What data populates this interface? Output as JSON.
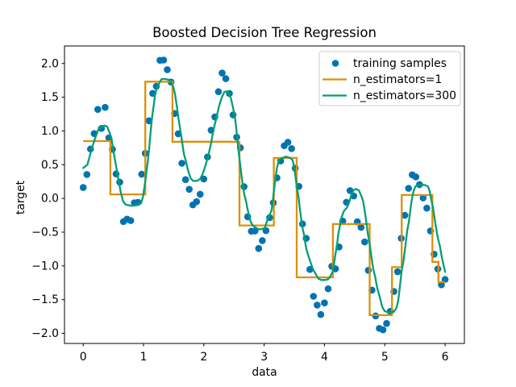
{
  "figure": {
    "background": "#ffffff",
    "spine_color": "#000000",
    "text_color": "#000000"
  },
  "chart_data": {
    "type": "scatter",
    "title": "Boosted Decision Tree Regression",
    "xlabel": "data",
    "ylabel": "target",
    "xlim": [
      -0.31,
      6.32
    ],
    "ylim": [
      -2.15,
      2.26
    ],
    "xticks": [
      0,
      1,
      2,
      3,
      4,
      5,
      6
    ],
    "yticks": [
      -2.0,
      -1.5,
      -1.0,
      -0.5,
      0.0,
      0.5,
      1.0,
      1.5,
      2.0
    ],
    "grid": false,
    "legend": {
      "position": "upper right",
      "entries": [
        {
          "label": "training samples",
          "marker": "dot"
        },
        {
          "label": "n_estimators=1",
          "marker": "line"
        },
        {
          "label": "n_estimators=300",
          "marker": "line"
        }
      ]
    },
    "series": [
      {
        "name": "training samples",
        "type": "scatter",
        "color": "#0173b2",
        "marker_radius": 4.3,
        "points": [
          [
            0,
            0.162
          ],
          [
            0.061,
            0.355
          ],
          [
            0.121,
            0.733
          ],
          [
            0.182,
            0.961
          ],
          [
            0.242,
            1.32
          ],
          [
            0.303,
            1.038
          ],
          [
            0.364,
            1.349
          ],
          [
            0.424,
            0.897
          ],
          [
            0.485,
            0.728
          ],
          [
            0.545,
            0.363
          ],
          [
            0.606,
            0.241
          ],
          [
            0.667,
            -0.344
          ],
          [
            0.727,
            -0.307
          ],
          [
            0.788,
            -0.329
          ],
          [
            0.848,
            -0.065
          ],
          [
            0.909,
            -0.058
          ],
          [
            0.97,
            0.359
          ],
          [
            1.03,
            0.668
          ],
          [
            1.091,
            1.151
          ],
          [
            1.152,
            1.557
          ],
          [
            1.212,
            1.662
          ],
          [
            1.273,
            2.047
          ],
          [
            1.333,
            2.051
          ],
          [
            1.394,
            1.908
          ],
          [
            1.455,
            1.726
          ],
          [
            1.515,
            1.258
          ],
          [
            1.576,
            0.958
          ],
          [
            1.636,
            0.521
          ],
          [
            1.697,
            0.278
          ],
          [
            1.758,
            0.135
          ],
          [
            1.818,
            -0.096
          ],
          [
            1.879,
            -0.049
          ],
          [
            1.939,
            0.062
          ],
          [
            2,
            0.288
          ],
          [
            2.061,
            0.614
          ],
          [
            2.121,
            1.011
          ],
          [
            2.182,
            1.208
          ],
          [
            2.242,
            1.582
          ],
          [
            2.303,
            1.859
          ],
          [
            2.364,
            1.775
          ],
          [
            2.424,
            1.556
          ],
          [
            2.485,
            1.238
          ],
          [
            2.545,
            0.908
          ],
          [
            2.606,
            0.751
          ],
          [
            2.667,
            0.174
          ],
          [
            2.727,
            -0.271
          ],
          [
            2.788,
            -0.486
          ],
          [
            2.848,
            -0.483
          ],
          [
            2.909,
            -0.742
          ],
          [
            2.97,
            -0.625
          ],
          [
            3.03,
            -0.478
          ],
          [
            3.091,
            -0.284
          ],
          [
            3.152,
            -0.065
          ],
          [
            3.212,
            0.305
          ],
          [
            3.273,
            0.556
          ],
          [
            3.333,
            0.781
          ],
          [
            3.394,
            0.832
          ],
          [
            3.455,
            0.738
          ],
          [
            3.515,
            0.447
          ],
          [
            3.576,
            0.179
          ],
          [
            3.636,
            -0.378
          ],
          [
            3.697,
            -0.592
          ],
          [
            3.758,
            -1.053
          ],
          [
            3.818,
            -1.451
          ],
          [
            3.879,
            -1.582
          ],
          [
            3.939,
            -1.721
          ],
          [
            4,
            -1.549
          ],
          [
            4.061,
            -1.339
          ],
          [
            4.121,
            -1.006
          ],
          [
            4.182,
            -1.044
          ],
          [
            4.242,
            -0.72
          ],
          [
            4.303,
            -0.335
          ],
          [
            4.364,
            -0.057
          ],
          [
            4.424,
            0.116
          ],
          [
            4.485,
            0.036
          ],
          [
            4.545,
            -0.346
          ],
          [
            4.606,
            -0.429
          ],
          [
            4.667,
            -0.645
          ],
          [
            4.727,
            -1.066
          ],
          [
            4.788,
            -1.359
          ],
          [
            4.848,
            -1.742
          ],
          [
            4.909,
            -1.926
          ],
          [
            4.97,
            -1.948
          ],
          [
            5.03,
            -1.853
          ],
          [
            5.091,
            -1.674
          ],
          [
            5.152,
            -1.379
          ],
          [
            5.212,
            -1.087
          ],
          [
            5.273,
            -0.591
          ],
          [
            5.333,
            -0.25
          ],
          [
            5.394,
            0.149
          ],
          [
            5.455,
            0.35
          ],
          [
            5.515,
            0.319
          ],
          [
            5.576,
            0.205
          ],
          [
            5.636,
            0.007
          ],
          [
            5.697,
            -0.144
          ],
          [
            5.758,
            -0.482
          ],
          [
            5.818,
            -0.827
          ],
          [
            5.879,
            -1.045
          ],
          [
            5.939,
            -1.28
          ],
          [
            6,
            -1.201
          ]
        ]
      },
      {
        "name": "n_estimators=1",
        "type": "step",
        "color": "#de8f05",
        "linewidth": 2.3,
        "segments": [
          [
            0.0,
            0.45,
            0.85
          ],
          [
            0.45,
            1.03,
            0.06
          ],
          [
            1.03,
            1.48,
            1.73
          ],
          [
            1.48,
            2.59,
            0.84
          ],
          [
            2.59,
            3.16,
            -0.4
          ],
          [
            3.16,
            3.54,
            0.6
          ],
          [
            3.54,
            4.14,
            -1.17
          ],
          [
            4.14,
            4.75,
            -0.38
          ],
          [
            4.75,
            5.12,
            -1.73
          ],
          [
            5.12,
            5.28,
            -1.02
          ],
          [
            5.28,
            5.79,
            0.05
          ],
          [
            5.79,
            5.89,
            -0.94
          ],
          [
            5.89,
            6.0,
            -1.24
          ]
        ]
      },
      {
        "name": "n_estimators=300",
        "type": "line",
        "color": "#029e73",
        "linewidth": 2.3,
        "points": [
          [
            0,
            0.45
          ],
          [
            0.07,
            0.5
          ],
          [
            0.13,
            0.7
          ],
          [
            0.2,
            0.9
          ],
          [
            0.25,
            1.02
          ],
          [
            0.3,
            1.06
          ],
          [
            0.36,
            1.08
          ],
          [
            0.4,
            1.06
          ],
          [
            0.44,
            0.97
          ],
          [
            0.47,
            0.88
          ],
          [
            0.51,
            0.66
          ],
          [
            0.55,
            0.46
          ],
          [
            0.58,
            0.3
          ],
          [
            0.62,
            0.1
          ],
          [
            0.66,
            -0.04
          ],
          [
            0.7,
            -0.09
          ],
          [
            0.8,
            -0.11
          ],
          [
            0.9,
            -0.1
          ],
          [
            0.96,
            -0.07
          ],
          [
            0.99,
            0.02
          ],
          [
            1.01,
            0.14
          ],
          [
            1.03,
            0.26
          ],
          [
            1.05,
            0.4
          ],
          [
            1.07,
            0.54
          ],
          [
            1.09,
            0.7
          ],
          [
            1.11,
            0.9
          ],
          [
            1.13,
            1.1
          ],
          [
            1.15,
            1.26
          ],
          [
            1.17,
            1.38
          ],
          [
            1.19,
            1.52
          ],
          [
            1.22,
            1.64
          ],
          [
            1.26,
            1.71
          ],
          [
            1.3,
            1.77
          ],
          [
            1.36,
            1.77
          ],
          [
            1.41,
            1.76
          ],
          [
            1.45,
            1.74
          ],
          [
            1.49,
            1.66
          ],
          [
            1.52,
            1.56
          ],
          [
            1.54,
            1.44
          ],
          [
            1.56,
            1.32
          ],
          [
            1.58,
            1.18
          ],
          [
            1.61,
            1.02
          ],
          [
            1.63,
            0.9
          ],
          [
            1.65,
            0.78
          ],
          [
            1.67,
            0.66
          ],
          [
            1.7,
            0.56
          ],
          [
            1.72,
            0.48
          ],
          [
            1.75,
            0.38
          ],
          [
            1.78,
            0.3
          ],
          [
            1.82,
            0.26
          ],
          [
            1.89,
            0.26
          ],
          [
            1.94,
            0.29
          ],
          [
            1.98,
            0.36
          ],
          [
            2.01,
            0.44
          ],
          [
            2.07,
            0.62
          ],
          [
            2.12,
            0.82
          ],
          [
            2.16,
            1.02
          ],
          [
            2.21,
            1.2
          ],
          [
            2.25,
            1.36
          ],
          [
            2.29,
            1.48
          ],
          [
            2.34,
            1.58
          ],
          [
            2.4,
            1.59
          ],
          [
            2.45,
            1.48
          ],
          [
            2.49,
            1.32
          ],
          [
            2.52,
            1.18
          ],
          [
            2.54,
            1.02
          ],
          [
            2.56,
            0.84
          ],
          [
            2.58,
            0.66
          ],
          [
            2.61,
            0.46
          ],
          [
            2.63,
            0.3
          ],
          [
            2.65,
            0.18
          ],
          [
            2.67,
            0.06
          ],
          [
            2.7,
            -0.04
          ],
          [
            2.72,
            -0.14
          ],
          [
            2.74,
            -0.22
          ],
          [
            2.77,
            -0.33
          ],
          [
            2.81,
            -0.4
          ],
          [
            2.87,
            -0.44
          ],
          [
            2.92,
            -0.46
          ],
          [
            2.97,
            -0.45
          ],
          [
            3.01,
            -0.44
          ],
          [
            3.05,
            -0.33
          ],
          [
            3.09,
            -0.25
          ],
          [
            3.12,
            -0.18
          ],
          [
            3.14,
            -0.08
          ],
          [
            3.16,
            0.1
          ],
          [
            3.19,
            0.3
          ],
          [
            3.21,
            0.44
          ],
          [
            3.24,
            0.56
          ],
          [
            3.28,
            0.59
          ],
          [
            3.36,
            0.62
          ],
          [
            3.43,
            0.6
          ],
          [
            3.47,
            0.57
          ],
          [
            3.5,
            0.46
          ],
          [
            3.52,
            0.32
          ],
          [
            3.54,
            0.18
          ],
          [
            3.57,
            0.02
          ],
          [
            3.59,
            -0.14
          ],
          [
            3.61,
            -0.28
          ],
          [
            3.63,
            -0.42
          ],
          [
            3.66,
            -0.53
          ],
          [
            3.68,
            -0.65
          ],
          [
            3.7,
            -0.75
          ],
          [
            3.73,
            -0.84
          ],
          [
            3.77,
            -0.95
          ],
          [
            3.81,
            -1.05
          ],
          [
            3.86,
            -1.13
          ],
          [
            3.9,
            -1.19
          ],
          [
            3.95,
            -1.21
          ],
          [
            4,
            -1.21
          ],
          [
            4.06,
            -1.2
          ],
          [
            4.1,
            -1.15
          ],
          [
            4.14,
            -1.08
          ],
          [
            4.16,
            -0.96
          ],
          [
            4.18,
            -0.84
          ],
          [
            4.21,
            -0.68
          ],
          [
            4.23,
            -0.53
          ],
          [
            4.26,
            -0.39
          ],
          [
            4.28,
            -0.29
          ],
          [
            4.32,
            -0.19
          ],
          [
            4.37,
            -0.14
          ],
          [
            4.41,
            -0.06
          ],
          [
            4.44,
            0.04
          ],
          [
            4.48,
            0.12
          ],
          [
            4.52,
            0.14
          ],
          [
            4.57,
            0.12
          ],
          [
            4.61,
            0.04
          ],
          [
            4.64,
            -0.04
          ],
          [
            4.66,
            -0.14
          ],
          [
            4.68,
            -0.26
          ],
          [
            4.7,
            -0.39
          ],
          [
            4.72,
            -0.53
          ],
          [
            4.75,
            -0.67
          ],
          [
            4.77,
            -0.81
          ],
          [
            4.79,
            -0.93
          ],
          [
            4.81,
            -1.05
          ],
          [
            4.84,
            -1.16
          ],
          [
            4.86,
            -1.26
          ],
          [
            4.88,
            -1.35
          ],
          [
            4.91,
            -1.44
          ],
          [
            4.93,
            -1.51
          ],
          [
            4.95,
            -1.58
          ],
          [
            4.97,
            -1.63
          ],
          [
            5,
            -1.67
          ],
          [
            5.05,
            -1.69
          ],
          [
            5.1,
            -1.69
          ],
          [
            5.15,
            -1.68
          ],
          [
            5.19,
            -1.63
          ],
          [
            5.22,
            -1.53
          ],
          [
            5.24,
            -1.39
          ],
          [
            5.26,
            -1.23
          ],
          [
            5.28,
            -1.07
          ],
          [
            5.31,
            -0.93
          ],
          [
            5.33,
            -0.79
          ],
          [
            5.35,
            -0.65
          ],
          [
            5.37,
            -0.49
          ],
          [
            5.4,
            -0.34
          ],
          [
            5.42,
            -0.2
          ],
          [
            5.44,
            -0.06
          ],
          [
            5.46,
            0.04
          ],
          [
            5.48,
            0.12
          ],
          [
            5.51,
            0.18
          ],
          [
            5.56,
            0.2
          ],
          [
            5.61,
            0.2
          ],
          [
            5.66,
            0.2
          ],
          [
            5.71,
            0.18
          ],
          [
            5.73,
            0.15
          ],
          [
            5.75,
            0.08
          ],
          [
            5.77,
            -0.02
          ],
          [
            5.8,
            -0.14
          ],
          [
            5.82,
            -0.26
          ],
          [
            5.84,
            -0.38
          ],
          [
            5.86,
            -0.49
          ],
          [
            5.88,
            -0.59
          ],
          [
            5.91,
            -0.69
          ],
          [
            5.93,
            -0.79
          ],
          [
            5.95,
            -0.89
          ],
          [
            5.97,
            -0.97
          ],
          [
            6,
            -1.09
          ]
        ]
      }
    ]
  }
}
